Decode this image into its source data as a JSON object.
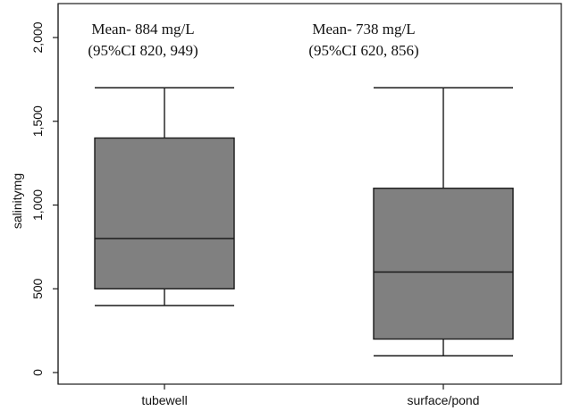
{
  "chart_data": {
    "type": "box",
    "ylabel": "salinitymg",
    "ylim": [
      0,
      2000
    ],
    "yticks": [
      0,
      500,
      1000,
      1500,
      2000
    ],
    "ytick_labels": [
      "0",
      "500",
      "1,000",
      "1,500",
      "2,000"
    ],
    "categories": [
      "tubewell",
      "surface/pond"
    ],
    "boxes": [
      {
        "category": "tubewell",
        "whisker_low": 400,
        "q1": 500,
        "median": 800,
        "q3": 1400,
        "whisker_high": 1700
      },
      {
        "category": "surface/pond",
        "whisker_low": 100,
        "q1": 200,
        "median": 600,
        "q3": 1100,
        "whisker_high": 1700
      }
    ],
    "annotations": [
      {
        "category": "tubewell",
        "lines": [
          "Mean- 884 mg/L",
          "(95%CI 820, 949)"
        ]
      },
      {
        "category": "surface/pond",
        "lines": [
          "Mean- 738 mg/L",
          "(95%CI 620, 856)"
        ]
      }
    ],
    "colors": {
      "box_fill": "#808080",
      "stroke": "#1a1a1a",
      "frame": "#1a1a1a"
    },
    "grid": false,
    "legend": "none"
  }
}
